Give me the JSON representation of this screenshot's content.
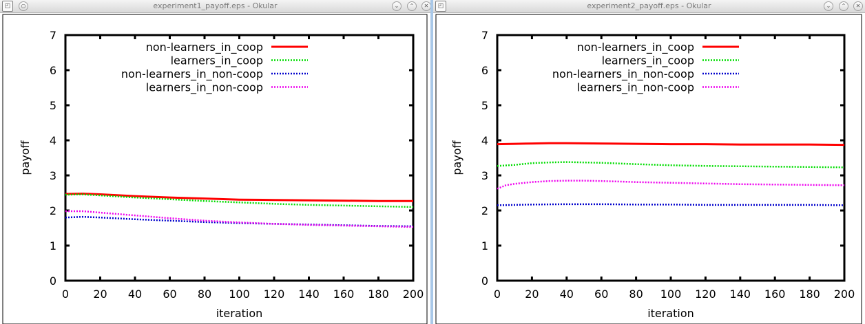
{
  "windows": [
    {
      "title": "experiment1_payoff.eps - Okular",
      "chart_data": {
        "type": "line",
        "xlabel": "iteration",
        "ylabel": "payoff",
        "xlim": [
          0,
          200
        ],
        "ylim": [
          0,
          7
        ],
        "xticks": [
          0,
          20,
          40,
          60,
          80,
          100,
          120,
          140,
          160,
          180,
          200
        ],
        "yticks": [
          0,
          1,
          2,
          3,
          4,
          5,
          6,
          7
        ],
        "grid": false,
        "legend": "top-right",
        "series": [
          {
            "name": "non-learners_in_coop",
            "color": "#ff0000",
            "style": "solid",
            "x": [
              0,
              10,
              20,
              40,
              60,
              80,
              100,
              120,
              140,
              160,
              180,
              200
            ],
            "y": [
              2.47,
              2.48,
              2.46,
              2.41,
              2.37,
              2.34,
              2.31,
              2.3,
              2.29,
              2.28,
              2.27,
              2.27
            ]
          },
          {
            "name": "learners_in_coop",
            "color": "#00dd00",
            "style": "dotted",
            "x": [
              0,
              10,
              20,
              40,
              60,
              80,
              100,
              120,
              140,
              160,
              180,
              200
            ],
            "y": [
              2.45,
              2.46,
              2.43,
              2.37,
              2.32,
              2.27,
              2.23,
              2.19,
              2.16,
              2.14,
              2.12,
              2.1
            ]
          },
          {
            "name": "non-learners_in_non-coop",
            "color": "#0000cc",
            "style": "dotted",
            "x": [
              0,
              10,
              20,
              40,
              60,
              80,
              100,
              120,
              140,
              160,
              180,
              200
            ],
            "y": [
              1.8,
              1.82,
              1.8,
              1.75,
              1.71,
              1.67,
              1.64,
              1.62,
              1.6,
              1.58,
              1.56,
              1.55
            ]
          },
          {
            "name": "learners_in_non-coop",
            "color": "#ee00ee",
            "style": "dotted",
            "x": [
              0,
              10,
              20,
              40,
              60,
              80,
              100,
              120,
              140,
              160,
              180,
              200
            ],
            "y": [
              1.98,
              1.98,
              1.94,
              1.86,
              1.78,
              1.71,
              1.66,
              1.62,
              1.59,
              1.57,
              1.55,
              1.53
            ]
          }
        ]
      }
    },
    {
      "title": "experiment2_payoff.eps - Okular",
      "chart_data": {
        "type": "line",
        "xlabel": "iteration",
        "ylabel": "payoff",
        "xlim": [
          0,
          200
        ],
        "ylim": [
          0,
          7
        ],
        "xticks": [
          0,
          20,
          40,
          60,
          80,
          100,
          120,
          140,
          160,
          180,
          200
        ],
        "yticks": [
          0,
          1,
          2,
          3,
          4,
          5,
          6,
          7
        ],
        "grid": false,
        "legend": "top-right",
        "series": [
          {
            "name": "non-learners_in_coop",
            "color": "#ff0000",
            "style": "solid",
            "x": [
              0,
              10,
              20,
              30,
              40,
              60,
              80,
              100,
              120,
              140,
              160,
              180,
              200
            ],
            "y": [
              3.89,
              3.9,
              3.91,
              3.92,
              3.92,
              3.91,
              3.9,
              3.89,
              3.89,
              3.88,
              3.88,
              3.88,
              3.87
            ]
          },
          {
            "name": "learners_in_coop",
            "color": "#00dd00",
            "style": "dotted",
            "x": [
              0,
              10,
              20,
              30,
              40,
              60,
              80,
              100,
              120,
              140,
              160,
              180,
              200
            ],
            "y": [
              3.27,
              3.3,
              3.35,
              3.37,
              3.38,
              3.36,
              3.32,
              3.29,
              3.27,
              3.26,
              3.25,
              3.24,
              3.23
            ]
          },
          {
            "name": "non-learners_in_non-coop",
            "color": "#0000cc",
            "style": "dotted",
            "x": [
              0,
              10,
              20,
              40,
              60,
              80,
              100,
              120,
              140,
              160,
              180,
              200
            ],
            "y": [
              2.15,
              2.16,
              2.17,
              2.18,
              2.18,
              2.17,
              2.17,
              2.16,
              2.16,
              2.16,
              2.16,
              2.15
            ]
          },
          {
            "name": "learners_in_non-coop",
            "color": "#ee00ee",
            "style": "dotted",
            "x": [
              0,
              5,
              10,
              20,
              30,
              40,
              50,
              60,
              80,
              100,
              120,
              140,
              160,
              180,
              200
            ],
            "y": [
              2.62,
              2.72,
              2.76,
              2.81,
              2.84,
              2.85,
              2.85,
              2.84,
              2.81,
              2.79,
              2.77,
              2.75,
              2.74,
              2.73,
              2.72
            ]
          }
        ]
      }
    }
  ]
}
